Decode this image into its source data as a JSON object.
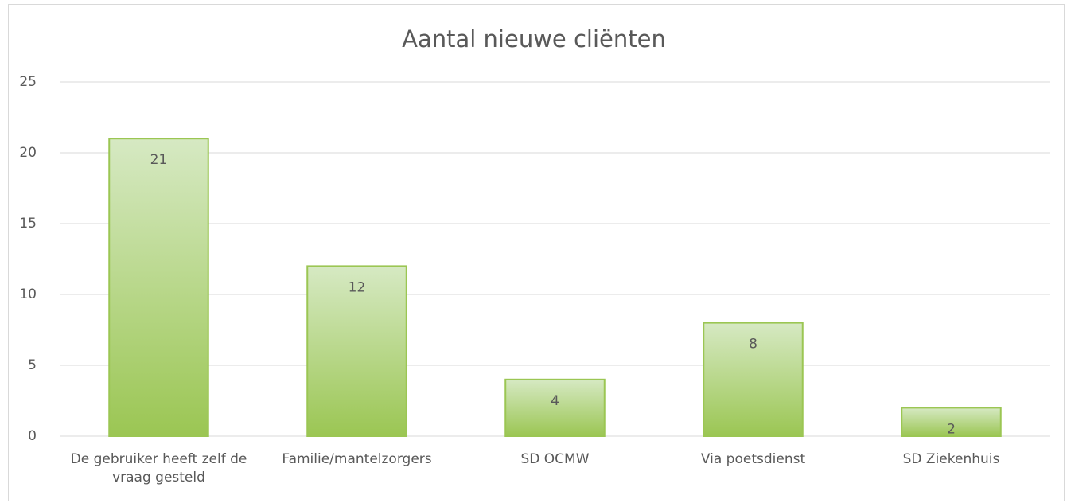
{
  "chart_data": {
    "type": "bar",
    "title": "Aantal nieuwe cliënten",
    "categories": [
      "De gebruiker heeft zelf de vraag gesteld",
      "Familie/mantelzorgers",
      "SD OCMW",
      "Via poetsdienst",
      "SD Ziekenhuis"
    ],
    "values": [
      21,
      12,
      4,
      8,
      2
    ],
    "color": "#9bc653",
    "ylim": [
      0,
      25
    ],
    "yticks": [
      0,
      5,
      10,
      15,
      20,
      25
    ],
    "grid": true
  }
}
